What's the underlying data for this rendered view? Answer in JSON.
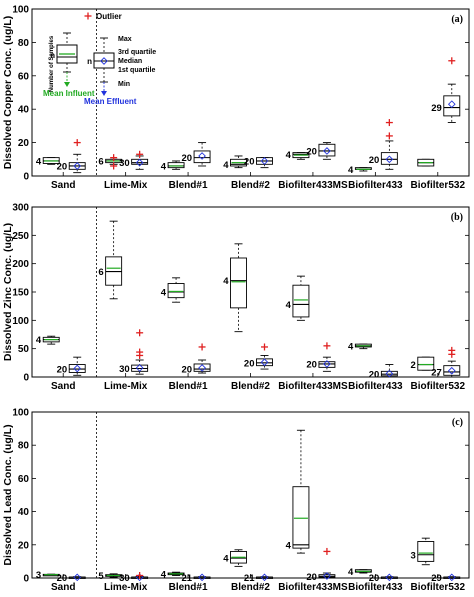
{
  "categories": [
    "Sand",
    "Lime-Mix",
    "Blend#1",
    "Blend#2",
    "Biofilter433MS",
    "Biofilter433",
    "Biofilter532"
  ],
  "legend": {
    "outlier": "Outlier",
    "max": "Max",
    "q3": "3rd quartile",
    "median": "Median",
    "q1": "1st quartile",
    "min": "Min",
    "n": "n",
    "nsamples": "Number of Samples",
    "mean_influent": "Mean Influent",
    "mean_effluent": "Mean Effluent",
    "colors": {
      "influent": "#22aa22",
      "effluent": "#2233dd",
      "outlier": "#e02020",
      "box": "#000000"
    }
  },
  "chart_data": [
    {
      "type": "box",
      "panel": "(a)",
      "ylabel": "Dissolved Copper Conc. (ug/L)",
      "ylim": [
        0,
        100
      ],
      "yticks": [
        0,
        20,
        40,
        60,
        80,
        100
      ],
      "groups": [
        {
          "cat": "Sand",
          "inf": {
            "n": "4",
            "min": 7,
            "q1": 7.5,
            "med": 9,
            "q3": 11,
            "max": 11,
            "mean": 9,
            "out": []
          },
          "eff": {
            "n": "20",
            "min": 2,
            "q1": 4,
            "med": 6,
            "q3": 8,
            "max": 13,
            "mean": 6,
            "out": [
              20
            ]
          }
        },
        {
          "cat": "Lime-Mix",
          "inf": {
            "n": "6",
            "min": 7,
            "q1": 8,
            "med": 9,
            "q3": 10,
            "max": 10,
            "mean": 9,
            "out": [
              6,
              11
            ]
          },
          "eff": {
            "n": "30",
            "min": 4,
            "q1": 7,
            "med": 8,
            "q3": 10,
            "max": 12,
            "mean": 8,
            "out": [
              13
            ]
          }
        },
        {
          "cat": "Blend#1",
          "inf": {
            "n": "4",
            "min": 4,
            "q1": 5,
            "med": 6,
            "q3": 8,
            "max": 9,
            "mean": 6,
            "out": []
          },
          "eff": {
            "n": "20",
            "min": 6,
            "q1": 8,
            "med": 11,
            "q3": 15,
            "max": 20,
            "mean": 12,
            "out": []
          }
        },
        {
          "cat": "Blend#2",
          "inf": {
            "n": "4",
            "min": 5,
            "q1": 6,
            "med": 7,
            "q3": 10,
            "max": 12,
            "mean": 8,
            "out": []
          },
          "eff": {
            "n": "20",
            "min": 5,
            "q1": 7,
            "med": 9,
            "q3": 11,
            "max": 11,
            "mean": 9,
            "out": []
          }
        },
        {
          "cat": "Biofilter433MS",
          "inf": {
            "n": "4",
            "min": 10,
            "q1": 11,
            "med": 13,
            "q3": 14,
            "max": 14,
            "mean": 12.5,
            "out": []
          },
          "eff": {
            "n": "20",
            "min": 10,
            "q1": 12,
            "med": 15,
            "q3": 19,
            "max": 20,
            "mean": 15,
            "out": []
          }
        },
        {
          "cat": "Biofilter433",
          "inf": {
            "n": "4",
            "min": 3,
            "q1": 4,
            "med": 4,
            "q3": 5,
            "max": 5,
            "mean": 4,
            "out": []
          },
          "eff": {
            "n": "20",
            "min": 4,
            "q1": 7,
            "med": 10,
            "q3": 14,
            "max": 21,
            "mean": 10,
            "out": [
              24,
              32
            ]
          }
        },
        {
          "cat": "Biofilter532",
          "inf": {
            "n": "",
            "min": 6,
            "q1": 6,
            "med": 8,
            "q3": 10,
            "max": 10,
            "mean": 8,
            "out": []
          },
          "eff": {
            "n": "29",
            "min": 32,
            "q1": 36,
            "med": 41,
            "q3": 48,
            "max": 55,
            "mean": 43,
            "out": [
              69
            ]
          }
        }
      ]
    },
    {
      "type": "box",
      "panel": "(b)",
      "ylabel": "Dissolved Zinc Conc. (ug/L)",
      "ylim": [
        0,
        300
      ],
      "yticks": [
        0,
        50,
        100,
        150,
        200,
        250,
        300
      ],
      "groups": [
        {
          "cat": "Sand",
          "inf": {
            "n": "4",
            "min": 58,
            "q1": 62,
            "med": 66,
            "q3": 70,
            "max": 72,
            "mean": 66,
            "out": []
          },
          "eff": {
            "n": "20",
            "min": 3,
            "q1": 8,
            "med": 14,
            "q3": 22,
            "max": 35,
            "mean": 15,
            "out": []
          }
        },
        {
          "cat": "Lime-Mix",
          "inf": {
            "n": "6",
            "min": 138,
            "q1": 162,
            "med": 186,
            "q3": 212,
            "max": 275,
            "mean": 192,
            "out": []
          },
          "eff": {
            "n": "30",
            "min": 5,
            "q1": 10,
            "med": 15,
            "q3": 21,
            "max": 30,
            "mean": 16,
            "out": [
              38,
              44,
              78
            ]
          }
        },
        {
          "cat": "Blend#1",
          "inf": {
            "n": "4",
            "min": 132,
            "q1": 140,
            "med": 150,
            "q3": 165,
            "max": 175,
            "mean": 151,
            "out": []
          },
          "eff": {
            "n": "20",
            "min": 7,
            "q1": 10,
            "med": 14,
            "q3": 23,
            "max": 30,
            "mean": 16,
            "out": [
              53
            ]
          }
        },
        {
          "cat": "Blend#2",
          "inf": {
            "n": "4",
            "min": 80,
            "q1": 122,
            "med": 170,
            "q3": 210,
            "max": 235,
            "mean": 168,
            "out": []
          },
          "eff": {
            "n": "20",
            "min": 14,
            "q1": 20,
            "med": 25,
            "q3": 32,
            "max": 38,
            "mean": 26,
            "out": [
              53
            ]
          }
        },
        {
          "cat": "Biofilter433MS",
          "inf": {
            "n": "4",
            "min": 100,
            "q1": 106,
            "med": 128,
            "q3": 162,
            "max": 178,
            "mean": 136,
            "out": []
          },
          "eff": {
            "n": "20",
            "min": 10,
            "q1": 17,
            "med": 23,
            "q3": 27,
            "max": 35,
            "mean": 23,
            "out": [
              55
            ]
          }
        },
        {
          "cat": "Biofilter433",
          "inf": {
            "n": "4",
            "min": 50,
            "q1": 53,
            "med": 55,
            "q3": 58,
            "max": 58,
            "mean": 55,
            "out": []
          },
          "eff": {
            "n": "20",
            "min": 0,
            "q1": 2,
            "med": 5,
            "q3": 10,
            "max": 22,
            "mean": 6,
            "out": []
          }
        },
        {
          "cat": "Biofilter532",
          "inf": {
            "n": "2",
            "min": 12,
            "q1": 12,
            "med": 22,
            "q3": 35,
            "max": 35,
            "mean": 22,
            "out": []
          },
          "eff": {
            "n": "27",
            "min": 0,
            "q1": 3,
            "med": 9,
            "q3": 20,
            "max": 28,
            "mean": 11,
            "out": [
              40,
              47
            ]
          }
        }
      ]
    },
    {
      "type": "box",
      "panel": "(c)",
      "ylabel": "Dissolved Lead Conc. (ug/L)",
      "ylim": [
        0,
        100
      ],
      "yticks": [
        0,
        20,
        40,
        60,
        80,
        100
      ],
      "groups": [
        {
          "cat": "Sand",
          "inf": {
            "n": "3",
            "min": 1.5,
            "q1": 1.8,
            "med": 2,
            "q3": 2.2,
            "max": 2.3,
            "mean": 2,
            "out": []
          },
          "eff": {
            "n": "20",
            "min": 0,
            "q1": 0.2,
            "med": 0.4,
            "q3": 0.6,
            "max": 0.8,
            "mean": 0.4,
            "out": []
          }
        },
        {
          "cat": "Lime-Mix",
          "inf": {
            "n": "5",
            "min": 0.5,
            "q1": 1,
            "med": 1.5,
            "q3": 2,
            "max": 2.5,
            "mean": 1.5,
            "out": []
          },
          "eff": {
            "n": "30",
            "min": 0,
            "q1": 0.2,
            "med": 0.4,
            "q3": 0.6,
            "max": 1,
            "mean": 0.4,
            "out": [
              1.5
            ]
          }
        },
        {
          "cat": "Blend#1",
          "inf": {
            "n": "4",
            "min": 1.5,
            "q1": 2,
            "med": 2.5,
            "q3": 3,
            "max": 3.5,
            "mean": 2.5,
            "out": []
          },
          "eff": {
            "n": "21",
            "min": 0,
            "q1": 0.2,
            "med": 0.4,
            "q3": 0.6,
            "max": 0.8,
            "mean": 0.4,
            "out": []
          }
        },
        {
          "cat": "Blend#2",
          "inf": {
            "n": "4",
            "min": 7,
            "q1": 9,
            "med": 12,
            "q3": 16,
            "max": 17,
            "mean": 12.5,
            "out": []
          },
          "eff": {
            "n": "21",
            "min": 0,
            "q1": 0.2,
            "med": 0.4,
            "q3": 0.6,
            "max": 0.8,
            "mean": 0.4,
            "out": []
          }
        },
        {
          "cat": "Biofilter433MS",
          "inf": {
            "n": "4",
            "min": 15,
            "q1": 18,
            "med": 20,
            "q3": 55,
            "max": 89,
            "mean": 36,
            "out": []
          },
          "eff": {
            "n": "20",
            "min": 0,
            "q1": 0.5,
            "med": 1,
            "q3": 2,
            "max": 3,
            "mean": 1.2,
            "out": [
              16
            ]
          }
        },
        {
          "cat": "Biofilter433",
          "inf": {
            "n": "4",
            "min": 3,
            "q1": 3.5,
            "med": 4,
            "q3": 5,
            "max": 5,
            "mean": 4,
            "out": []
          },
          "eff": {
            "n": "20",
            "min": 0,
            "q1": 0.2,
            "med": 0.4,
            "q3": 0.6,
            "max": 0.8,
            "mean": 0.4,
            "out": []
          }
        },
        {
          "cat": "Biofilter532",
          "inf": {
            "n": "3",
            "min": 8,
            "q1": 10,
            "med": 14,
            "q3": 22,
            "max": 24,
            "mean": 15,
            "out": []
          },
          "eff": {
            "n": "29",
            "min": 0,
            "q1": 0.2,
            "med": 0.4,
            "q3": 0.6,
            "max": 0.8,
            "mean": 0.4,
            "out": []
          }
        }
      ]
    }
  ]
}
